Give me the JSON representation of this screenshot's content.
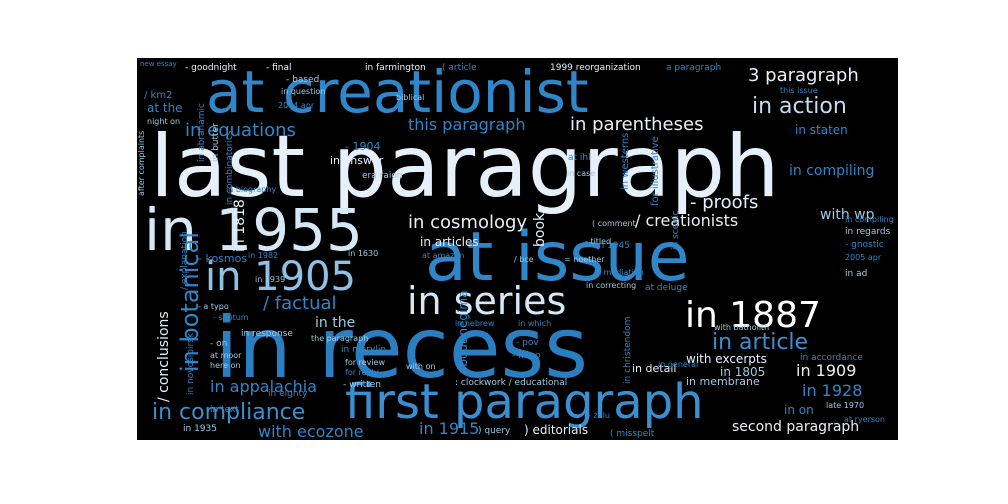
{
  "wordcloud": {
    "background": "#000000",
    "palette": {
      "white": "#ffffff",
      "pale_blue": "#c6dbef",
      "light_blue": "#9ecae1",
      "mid_blue": "#6baed6",
      "blue": "#3182bd",
      "deep_blue": "#2171b5",
      "dark_blue": "#1f5f99"
    },
    "words": [
      {
        "text": "last paragraph",
        "color": "#e6f0fa"
      },
      {
        "text": "in recess",
        "color": "#2b7fc0"
      },
      {
        "text": "at issue",
        "color": "#2f86c9"
      },
      {
        "text": "at creationist",
        "color": "#2f86c9"
      },
      {
        "text": "in 1955",
        "color": "#d6e8f5"
      },
      {
        "text": "first paragraph",
        "color": "#3a8fd0"
      },
      {
        "text": "in 1905",
        "color": "#8fc1e6"
      },
      {
        "text": "in series",
        "color": "#d6e8f5"
      },
      {
        "text": "in 1887",
        "color": "#ffffff"
      },
      {
        "text": "in action",
        "color": "#c6dbef"
      },
      {
        "text": "in botanical",
        "color": "#2f86c9"
      },
      {
        "text": "in compliance",
        "color": "#3a8fd0"
      },
      {
        "text": "in article",
        "color": "#3a8fd0"
      },
      {
        "text": "3 paragraph",
        "color": "#e6f0fa"
      },
      {
        "text": "this paragraph",
        "color": "#2f86c9"
      },
      {
        "text": "in parentheses",
        "color": "#e6f0fa"
      },
      {
        "text": "in equations",
        "color": "#2f86c9"
      },
      {
        "text": "in cosmology",
        "color": "#e6f0fa"
      },
      {
        "text": "- proofs",
        "color": "#e6f0fa"
      },
      {
        "text": "/ creationists",
        "color": "#e6f0fa"
      },
      {
        "text": "/ factual",
        "color": "#2f86c9"
      },
      {
        "text": "/ conclusions",
        "color": "#e6f0fa"
      },
      {
        "text": "in appalachia",
        "color": "#2f86c9"
      },
      {
        "text": "in 1909",
        "color": "#e6f0fa"
      },
      {
        "text": "in 1928",
        "color": "#2f86c9"
      },
      {
        "text": "in 1915",
        "color": "#2f86c9"
      },
      {
        "text": "with ecozone",
        "color": "#2f86c9"
      },
      {
        "text": "second paragraph",
        "color": "#e6f0fa"
      },
      {
        "text": "with wp",
        "color": "#9ecae1"
      },
      {
        "text": "in compiling",
        "color": "#2f86c9"
      },
      {
        "text": "in the",
        "color": "#9ecae1"
      },
      {
        "text": "in 1818",
        "color": "#e6f0fa"
      },
      {
        "text": "about negima",
        "color": "#2f86c9"
      },
      {
        "text": "in articles",
        "color": "#e6f0fa"
      },
      {
        "text": "book",
        "color": "#e6f0fa"
      },
      {
        "text": "with excerpts",
        "color": "#e6f0fa"
      },
      {
        "text": "in 1805",
        "color": "#9ecae1"
      },
      {
        "text": ") editorials",
        "color": "#e6f0fa"
      },
      {
        "text": "in staten",
        "color": "#2f86c9"
      },
      {
        "text": "in on",
        "color": "#2f86c9"
      },
      {
        "text": "at the",
        "color": "#2f86c9"
      },
      {
        "text": "/ km2",
        "color": "#2f86c9"
      },
      {
        "text": "- kosmos",
        "color": "#2f86c9"
      },
      {
        "text": "in answer",
        "color": "#e6f0fa"
      },
      {
        "text": "- 1904",
        "color": "#2f86c9"
      },
      {
        "text": "in detail",
        "color": "#e6f0fa"
      },
      {
        "text": "in membrane",
        "color": "#9ecae1"
      },
      {
        "text": "in farmington",
        "color": "#e6f0fa"
      },
      {
        "text": "- goodnight",
        "color": "#e6f0fa"
      },
      {
        "text": "- final",
        "color": "#e6f0fa"
      },
      {
        "text": "( article",
        "color": "#2f86c9"
      },
      {
        "text": "1999 reorganization",
        "color": "#e6f0fa"
      },
      {
        "text": "a paragraph",
        "color": "#2f86c9"
      },
      {
        "text": "new essay",
        "color": "#2f86c9"
      },
      {
        "text": "- based",
        "color": "#9ecae1"
      },
      {
        "text": "in question",
        "color": "#9ecae1"
      },
      {
        "text": "2004 apr",
        "color": "#2f86c9"
      },
      {
        "text": "biblical",
        "color": "#9ecae1"
      },
      {
        "text": "in abrahamic",
        "color": "#2f86c9"
      },
      {
        "text": "in butter",
        "color": "#9ecae1"
      },
      {
        "text": "in combinatorics",
        "color": "#2f86c9"
      },
      {
        "text": "era raion",
        "color": "#9ecae1"
      },
      {
        "text": "in westerns",
        "color": "#2f86c9"
      },
      {
        "text": "in case",
        "color": "#9ecae1"
      },
      {
        "text": "at ihl",
        "color": "#2f86c9"
      },
      {
        "text": "for illustrative",
        "color": "#2f86c9"
      },
      {
        "text": "at mediation",
        "color": "#2f86c9"
      },
      {
        "text": "in correcting",
        "color": "#9ecae1"
      },
      {
        "text": "in 1945",
        "color": "#2f86c9"
      },
      {
        "text": "= noether",
        "color": "#9ecae1"
      },
      {
        "text": "at deluge",
        "color": "#2f86c9"
      },
      {
        "text": "in ad",
        "color": "#9ecae1"
      },
      {
        "text": "in regards",
        "color": "#9ecae1"
      },
      {
        "text": "- gnostic",
        "color": "#2f86c9"
      },
      {
        "text": "2005 apr",
        "color": "#2f86c9"
      },
      {
        "text": "in 1939",
        "color": "#9ecae1"
      },
      {
        "text": "in 1630",
        "color": "#9ecae1"
      },
      {
        "text": "in response",
        "color": "#9ecae1"
      },
      {
        "text": "in marylin",
        "color": "#2f86c9"
      },
      {
        "text": "for review",
        "color": "#9ecae1"
      },
      {
        "text": "for reply",
        "color": "#2f86c9"
      },
      {
        "text": "in eighty",
        "color": "#2f86c9"
      },
      {
        "text": "in text",
        "color": "#2f86c9"
      },
      {
        "text": "in 1935",
        "color": "#9ecae1"
      },
      {
        "text": "in novosibirsk",
        "color": "#2f86c9"
      },
      {
        "text": "/ explanation",
        "color": "#2f86c9"
      },
      {
        "text": "- septum",
        "color": "#2f86c9"
      },
      {
        "text": "- a typo",
        "color": "#9ecae1"
      },
      {
        "text": "- on",
        "color": "#9ecae1"
      },
      {
        "text": "at moor",
        "color": "#9ecae1"
      },
      {
        "text": "here on",
        "color": "#9ecae1"
      },
      {
        "text": "the paragraph",
        "color": "#9ecae1"
      },
      {
        "text": "in hebrew",
        "color": "#2f86c9"
      },
      {
        "text": "in which",
        "color": "#2f86c9"
      },
      {
        "text": "with on",
        "color": "#9ecae1"
      },
      {
        "text": "- pov",
        "color": "#2f86c9"
      },
      {
        "text": "- finno",
        "color": "#2f86c9"
      },
      {
        "text": ": clockwork / educational",
        "color": "#9ecae1"
      },
      {
        "text": "- written",
        "color": "#9ecae1"
      },
      {
        "text": ") query",
        "color": "#9ecae1"
      },
      {
        "text": "( misspelt",
        "color": "#2f86c9"
      },
      {
        "text": "in christendom",
        "color": "#2f86c9"
      },
      {
        "text": "in accordance",
        "color": "#2f86c9"
      },
      {
        "text": "with batholith",
        "color": "#9ecae1"
      },
      {
        "text": "late 1970",
        "color": "#9ecae1"
      },
      {
        "text": "at ryerson",
        "color": "#2f86c9"
      },
      {
        "text": "in general",
        "color": "#2f86c9"
      },
      {
        "text": "- zulu",
        "color": "#2f86c9"
      },
      {
        "text": "in biography",
        "color": "#2f86c9"
      },
      {
        "text": "night on",
        "color": "#9ecae1"
      },
      {
        "text": "after complaints",
        "color": "#9ecae1"
      },
      {
        "text": "in scenic",
        "color": "#2f86c9"
      },
      {
        "text": "in 1982",
        "color": "#2f86c9"
      },
      {
        "text": "at amazon",
        "color": "#2f86c9"
      },
      {
        "text": "/ bce",
        "color": "#9ecae1"
      },
      {
        "text": "( comment",
        "color": "#9ecae1"
      },
      {
        "text": "- titled",
        "color": "#9ecae1"
      },
      {
        "text": "this issue",
        "color": "#2f86c9"
      },
      {
        "text": "in compiling",
        "color": "#2f86c9"
      }
    ]
  }
}
